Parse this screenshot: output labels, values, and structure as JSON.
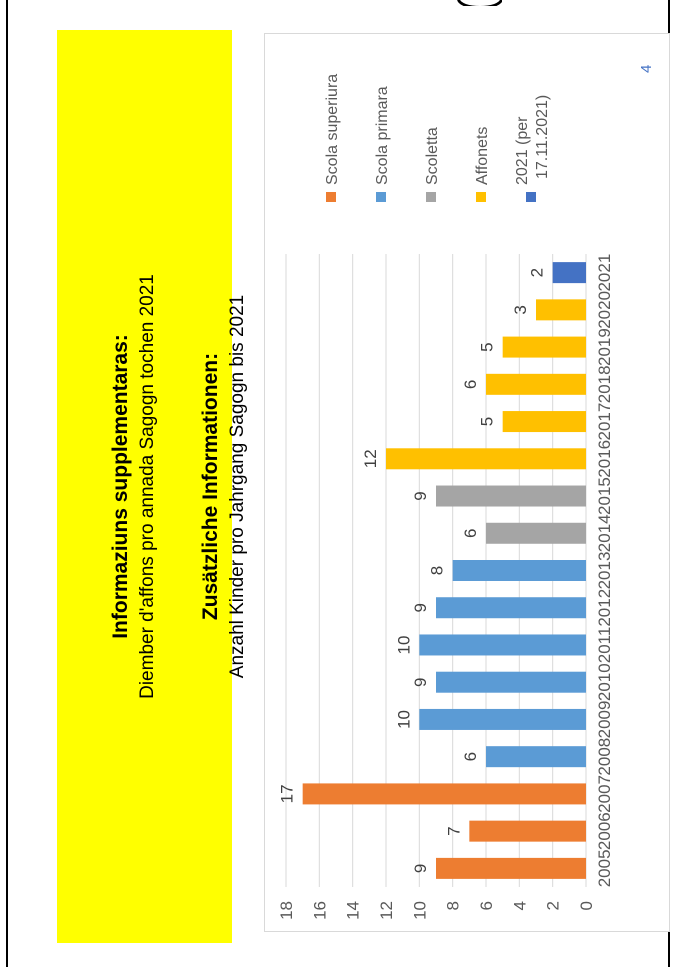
{
  "note": {
    "title_rm": "Informaziuns supplementaras:",
    "subtitle_rm": "Diember d'affons pro annada Sagogn tochen 2021",
    "title_de": "Zusätzliche Informationen:",
    "subtitle_de": "Anzahl Kinder pro Jahrgang Sagogn bis 2021"
  },
  "page_number": "4",
  "chart_data": {
    "type": "bar",
    "categories": [
      "2005",
      "2006",
      "2007",
      "2008",
      "2009",
      "2010",
      "2011",
      "2012",
      "2013",
      "2014",
      "2015",
      "2016",
      "2017",
      "2018",
      "2019",
      "2020",
      "2021"
    ],
    "values": [
      9,
      7,
      17,
      6,
      10,
      9,
      10,
      9,
      8,
      6,
      9,
      12,
      5,
      6,
      5,
      3,
      2
    ],
    "groups": [
      "Scola superiura",
      "Scola superiura",
      "Scola superiura",
      "Scola primara",
      "Scola primara",
      "Scola primara",
      "Scola primara",
      "Scola primara",
      "Scola primara",
      "Scoletta",
      "Scoletta",
      "Affonets",
      "Affonets",
      "Affonets",
      "Affonets",
      "Affonets",
      "2021 (per 17.11.2021)"
    ],
    "legend": [
      {
        "name": "Scola superiura",
        "color": "#ed7d31"
      },
      {
        "name": "Scola primara",
        "color": "#5b9bd5"
      },
      {
        "name": "Scoletta",
        "color": "#a5a5a5"
      },
      {
        "name": "Affonets",
        "color": "#ffc000"
      },
      {
        "name": "2021 (per 17.11.2021)",
        "color": "#4472c4"
      }
    ],
    "yticks": [
      "0",
      "2",
      "4",
      "6",
      "8",
      "10",
      "12",
      "14",
      "16",
      "18"
    ],
    "ylim": [
      0,
      18
    ],
    "grid": true,
    "legend_position": "right"
  }
}
